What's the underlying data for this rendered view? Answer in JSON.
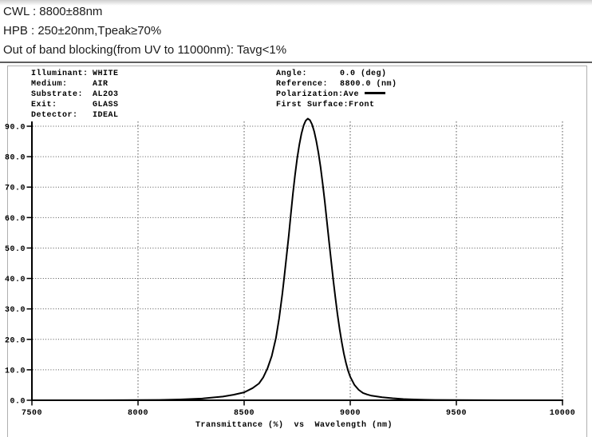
{
  "header": {
    "line1": "CWL : 8800±88nm",
    "line2": "HPB : 250±20nm,Tpeak≥70%",
    "line3": "Out of band blocking(from UV to 11000nm): Tavg<1%"
  },
  "panel": {
    "params_left": [
      {
        "label": "Illuminant:",
        "value": "WHITE"
      },
      {
        "label": "Medium:",
        "value": "AIR"
      },
      {
        "label": "Substrate:",
        "value": "AL2O3"
      },
      {
        "label": "Exit:",
        "value": "GLASS"
      },
      {
        "label": "Detector:",
        "value": "IDEAL"
      }
    ],
    "params_right": [
      {
        "label": "Angle:",
        "value": "0.0 (deg)"
      },
      {
        "label": "Reference:",
        "value": "8800.0 (nm)"
      },
      {
        "label": "Polarization:",
        "value": "Ave",
        "legend_line": true
      },
      {
        "label": "First Surface:",
        "value": "Front"
      }
    ]
  },
  "chart_data": {
    "type": "line",
    "caption": "Transmittance (%)  vs  Wavelength (nm)",
    "xlabel": "Wavelength (nm)",
    "ylabel": "Transmittance (%)",
    "xlim": [
      7500,
      10000
    ],
    "ylim": [
      0,
      92.6
    ],
    "x_ticks": [
      "7500",
      "8000",
      "8500",
      "9000",
      "9500",
      "10000"
    ],
    "y_ticks": [
      "0.0",
      "10.0",
      "20.0",
      "30.0",
      "40.0",
      "50.0",
      "60.0",
      "70.0",
      "80.0",
      "90.0"
    ],
    "grid": true,
    "grid_color": "#555555",
    "axis_color": "#000000",
    "series": [
      {
        "name": "Ave",
        "color": "#000000",
        "points": [
          [
            7500,
            0
          ],
          [
            7800,
            0
          ],
          [
            8000,
            0.05
          ],
          [
            8100,
            0.1
          ],
          [
            8200,
            0.25
          ],
          [
            8300,
            0.55
          ],
          [
            8400,
            1.2
          ],
          [
            8450,
            1.8
          ],
          [
            8500,
            2.6
          ],
          [
            8540,
            4.0
          ],
          [
            8570,
            5.5
          ],
          [
            8590,
            7.5
          ],
          [
            8610,
            10.5
          ],
          [
            8630,
            14.5
          ],
          [
            8650,
            20.5
          ],
          [
            8665,
            27
          ],
          [
            8680,
            35
          ],
          [
            8690,
            41
          ],
          [
            8700,
            47.5
          ],
          [
            8710,
            54
          ],
          [
            8720,
            61
          ],
          [
            8730,
            68
          ],
          [
            8740,
            74
          ],
          [
            8750,
            79.5
          ],
          [
            8760,
            84
          ],
          [
            8770,
            87.5
          ],
          [
            8780,
            90.2
          ],
          [
            8790,
            91.8
          ],
          [
            8800,
            92.5
          ],
          [
            8810,
            92.0
          ],
          [
            8820,
            90.6
          ],
          [
            8830,
            88.3
          ],
          [
            8840,
            85.2
          ],
          [
            8850,
            81.3
          ],
          [
            8860,
            76.6
          ],
          [
            8870,
            71.2
          ],
          [
            8880,
            65.2
          ],
          [
            8890,
            58.8
          ],
          [
            8900,
            52.2
          ],
          [
            8910,
            45.7
          ],
          [
            8920,
            39.5
          ],
          [
            8930,
            33.6
          ],
          [
            8940,
            28.2
          ],
          [
            8950,
            23.3
          ],
          [
            8960,
            19
          ],
          [
            8970,
            15.3
          ],
          [
            8980,
            12.2
          ],
          [
            8990,
            9.7
          ],
          [
            9000,
            7.7
          ],
          [
            9020,
            5.0
          ],
          [
            9040,
            3.4
          ],
          [
            9060,
            2.4
          ],
          [
            9080,
            1.9
          ],
          [
            9100,
            1.5
          ],
          [
            9150,
            1.0
          ],
          [
            9200,
            0.65
          ],
          [
            9250,
            0.4
          ],
          [
            9300,
            0.25
          ],
          [
            9350,
            0.15
          ],
          [
            9400,
            0.1
          ],
          [
            9500,
            0.05
          ],
          [
            9700,
            0
          ],
          [
            10000,
            0
          ]
        ]
      }
    ]
  }
}
